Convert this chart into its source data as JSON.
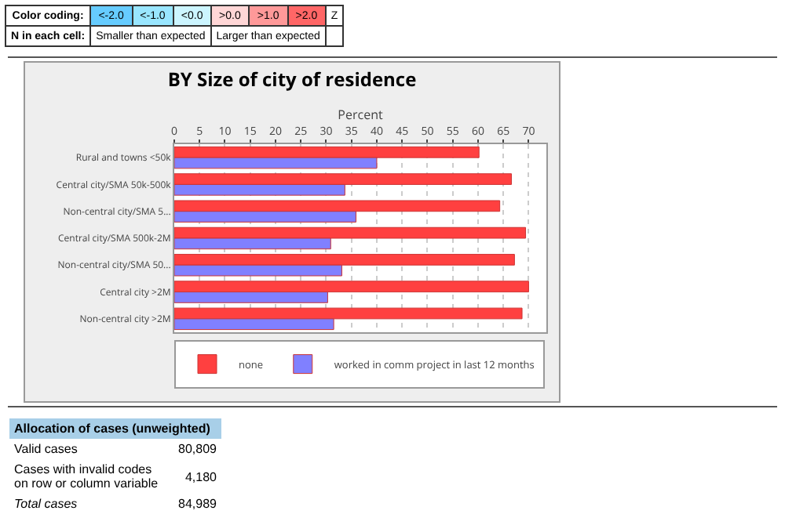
{
  "chart_data": {
    "type": "bar",
    "orientation": "horizontal",
    "title": "BY Size of city of residence",
    "xlabel": "Percent",
    "categories": [
      "Rural and towns <50k",
      "Central city/SMA 50k-500k",
      "Non-central city/SMA 5...",
      "Central city/SMA 500k-2M",
      "Non-central city/SMA 50...",
      "Central city >2M",
      "Non-central city >2M"
    ],
    "series": [
      {
        "name": "none",
        "color": "#ff4040",
        "values": [
          60.2,
          66.6,
          64.3,
          69.4,
          67.2,
          70.0,
          68.7
        ]
      },
      {
        "name": "worked in comm project in last 12 months",
        "color": "#8080ff",
        "values": [
          40.0,
          33.7,
          35.9,
          30.9,
          33.1,
          30.3,
          31.5
        ]
      }
    ],
    "xlim": [
      0,
      73.5
    ],
    "xticks": [
      0,
      5,
      10,
      15,
      20,
      25,
      30,
      35,
      40,
      45,
      50,
      55,
      60,
      65,
      70
    ],
    "grid": "x",
    "legend": "bottom",
    "annotations": [
      "Color coding:",
      "<-2.0",
      "<-1.0",
      "<0.0",
      ">0.0",
      ">1.0",
      ">2.0",
      "Z",
      "N in each cell:",
      "Smaller than expected",
      "Larger than expected",
      "Allocation of cases (unweighted)",
      "Valid cases",
      "80,809",
      "Cases with invalid codes on row or column variable",
      "4,180",
      "Total cases",
      "84,989"
    ]
  }
}
